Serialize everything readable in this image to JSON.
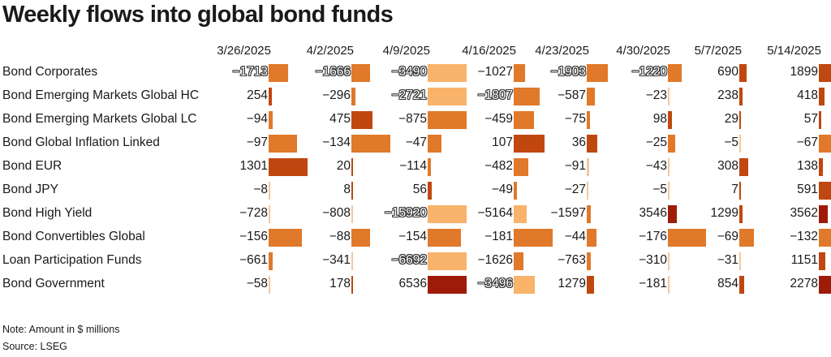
{
  "title": "Weekly flows into global bond funds",
  "note": "Note: Amount in $ millions",
  "source": "Source: LSEG",
  "colors": {
    "light": "#f9b36a",
    "mid": "#e0792a",
    "dark": "#c0470f",
    "darkest": "#9e1b08",
    "tick": "#f4c8a0",
    "text": "#1a1a1a"
  },
  "chart_data": {
    "type": "table",
    "columns": [
      "3/26/2025",
      "4/2/2025",
      "4/9/2025",
      "4/16/2025",
      "4/23/2025",
      "4/30/2025",
      "5/7/2025",
      "5/14/2025"
    ],
    "rows": [
      {
        "label": "Bond Corporates",
        "values": [
          -1713,
          -1666,
          -3490,
          -1027,
          -1903,
          -1220,
          690,
          1899
        ]
      },
      {
        "label": "Bond Emerging Markets Global HC",
        "values": [
          254,
          -296,
          -2721,
          -1807,
          -587,
          -23,
          238,
          418
        ]
      },
      {
        "label": "Bond Emerging Markets Global LC",
        "values": [
          -94,
          475,
          -875,
          -459,
          -75,
          98,
          29,
          57
        ]
      },
      {
        "label": "Bond Global Inflation Linked",
        "values": [
          -97,
          -134,
          -47,
          107,
          36,
          -25,
          -5,
          -67
        ]
      },
      {
        "label": "Bond EUR",
        "values": [
          1301,
          20,
          -114,
          -482,
          -91,
          -43,
          308,
          138
        ]
      },
      {
        "label": "Bond JPY",
        "values": [
          -8,
          8,
          56,
          -49,
          -27,
          -5,
          7,
          591
        ]
      },
      {
        "label": "Bond High Yield",
        "values": [
          -728,
          -808,
          -15920,
          -5164,
          -1597,
          3546,
          1299,
          3562
        ]
      },
      {
        "label": "Bond Convertibles Global",
        "values": [
          -156,
          -88,
          -154,
          -181,
          -44,
          -176,
          -69,
          -132
        ]
      },
      {
        "label": "Loan Participation Funds",
        "values": [
          -661,
          -341,
          -6692,
          -1626,
          -763,
          -310,
          -31,
          1151
        ]
      },
      {
        "label": "Bond Government",
        "values": [
          -58,
          178,
          6536,
          -3496,
          1279,
          -181,
          854,
          2278
        ]
      }
    ]
  }
}
